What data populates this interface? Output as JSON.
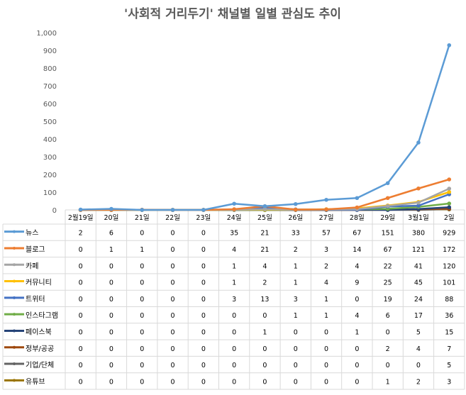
{
  "chart_data": {
    "type": "line",
    "title": "'사회적 거리두기' 채널별 일별 관심도 추이",
    "categories": [
      "2월19일",
      "20일",
      "21일",
      "22일",
      "23일",
      "24일",
      "25일",
      "26일",
      "27일",
      "28일",
      "29일",
      "3월1일",
      "2일"
    ],
    "yticks": [
      "0",
      "100",
      "200",
      "300",
      "400",
      "500",
      "600",
      "700",
      "800",
      "900",
      "1,000"
    ],
    "ylim": [
      0,
      1000
    ],
    "grid": false,
    "legend": "data-table",
    "series": [
      {
        "name": "뉴스",
        "color": "#5B9BD5",
        "values": [
          2,
          6,
          0,
          0,
          0,
          35,
          21,
          33,
          57,
          67,
          151,
          380,
          929
        ]
      },
      {
        "name": "블로그",
        "color": "#ED7D31",
        "values": [
          0,
          1,
          1,
          0,
          0,
          4,
          21,
          2,
          3,
          14,
          67,
          121,
          172
        ]
      },
      {
        "name": "카페",
        "color": "#A5A5A5",
        "values": [
          0,
          0,
          0,
          0,
          0,
          1,
          4,
          1,
          2,
          4,
          22,
          41,
          120
        ]
      },
      {
        "name": "커뮤니티",
        "color": "#FFC000",
        "values": [
          0,
          0,
          0,
          0,
          0,
          1,
          2,
          1,
          4,
          9,
          25,
          45,
          101
        ]
      },
      {
        "name": "트위터",
        "color": "#4472C4",
        "values": [
          0,
          0,
          0,
          0,
          0,
          3,
          13,
          3,
          1,
          0,
          19,
          24,
          88
        ]
      },
      {
        "name": "인스타그램",
        "color": "#70AD47",
        "values": [
          0,
          0,
          0,
          0,
          0,
          0,
          0,
          1,
          1,
          4,
          6,
          17,
          36
        ]
      },
      {
        "name": "페이스북",
        "color": "#264478",
        "values": [
          0,
          0,
          0,
          0,
          0,
          0,
          1,
          0,
          0,
          1,
          0,
          5,
          15
        ]
      },
      {
        "name": "정부/공공",
        "color": "#9E480E",
        "values": [
          0,
          0,
          0,
          0,
          0,
          0,
          0,
          0,
          0,
          0,
          2,
          4,
          7
        ]
      },
      {
        "name": "기업/단체",
        "color": "#636363",
        "values": [
          0,
          0,
          0,
          0,
          0,
          0,
          0,
          0,
          0,
          0,
          0,
          0,
          5
        ]
      },
      {
        "name": "유튜브",
        "color": "#997300",
        "values": [
          0,
          0,
          0,
          0,
          0,
          0,
          0,
          0,
          0,
          0,
          1,
          2,
          3
        ]
      }
    ]
  }
}
